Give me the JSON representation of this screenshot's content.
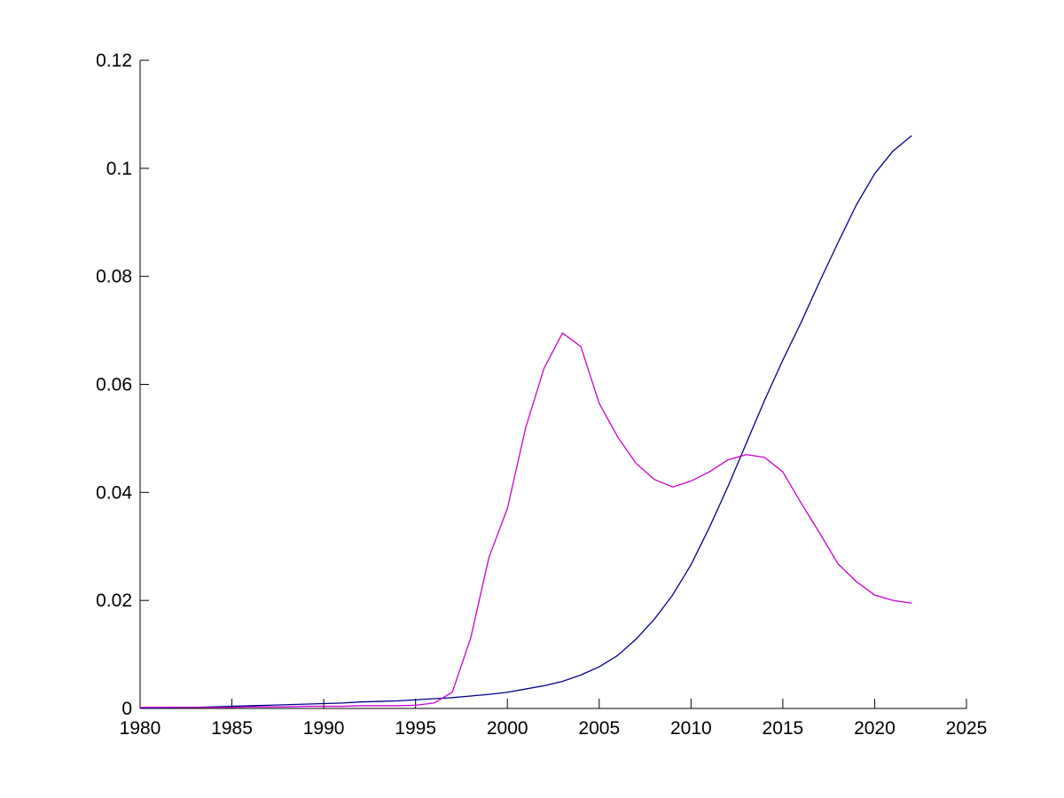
{
  "figure": {
    "background": "#ffffff"
  },
  "chart_data": {
    "type": "line",
    "title": "",
    "xlabel": "",
    "ylabel": "",
    "grid": false,
    "legend": null,
    "box": false,
    "xlim": [
      1980,
      2025
    ],
    "ylim": [
      0,
      0.12
    ],
    "x_ticks": [
      1980,
      1985,
      1990,
      1995,
      2000,
      2005,
      2010,
      2015,
      2020,
      2025
    ],
    "x_tick_labels": [
      "1980",
      "1985",
      "1990",
      "1995",
      "2000",
      "2005",
      "2010",
      "2015",
      "2020",
      "2025"
    ],
    "y_ticks": [
      0,
      0.02,
      0.04,
      0.06,
      0.08,
      0.1,
      0.12
    ],
    "y_tick_labels": [
      "0",
      "0.02",
      "0.04",
      "0.06",
      "0.08",
      "0.1",
      "0.12"
    ],
    "x": [
      1980,
      1981,
      1982,
      1983,
      1984,
      1985,
      1986,
      1987,
      1988,
      1989,
      1990,
      1991,
      1992,
      1993,
      1994,
      1995,
      1996,
      1997,
      1998,
      1999,
      2000,
      2001,
      2002,
      2003,
      2004,
      2005,
      2006,
      2007,
      2008,
      2009,
      2010,
      2011,
      2012,
      2013,
      2014,
      2015,
      2016,
      2017,
      2018,
      2019,
      2020,
      2021,
      2022
    ],
    "series": [
      {
        "name": "dark-blue-series",
        "color": "#00008B",
        "values": [
          0.0001,
          0.0001,
          0.0002,
          0.0002,
          0.0003,
          0.0004,
          0.0005,
          0.0006,
          0.0007,
          0.0008,
          0.0009,
          0.001,
          0.0012,
          0.0013,
          0.0014,
          0.0016,
          0.0018,
          0.002,
          0.0023,
          0.0026,
          0.003,
          0.0036,
          0.0042,
          0.005,
          0.0062,
          0.0077,
          0.0098,
          0.0128,
          0.0165,
          0.021,
          0.0266,
          0.0335,
          0.041,
          0.049,
          0.057,
          0.0645,
          0.0715,
          0.079,
          0.0862,
          0.0932,
          0.099,
          0.1032,
          0.106
        ]
      },
      {
        "name": "magenta-series",
        "color": "#CC00CC",
        "values": [
          0.0002,
          0.0002,
          0.0002,
          0.0002,
          0.0002,
          0.0002,
          0.0003,
          0.0003,
          0.0003,
          0.0004,
          0.0004,
          0.0004,
          0.0005,
          0.0005,
          0.0005,
          0.0006,
          0.001,
          0.003,
          0.013,
          0.028,
          0.037,
          0.052,
          0.063,
          0.0695,
          0.067,
          0.0565,
          0.0503,
          0.0454,
          0.0424,
          0.041,
          0.0421,
          0.0438,
          0.046,
          0.047,
          0.0465,
          0.0438,
          0.038,
          0.0325,
          0.0268,
          0.0235,
          0.021,
          0.02,
          0.0195
        ]
      }
    ]
  }
}
